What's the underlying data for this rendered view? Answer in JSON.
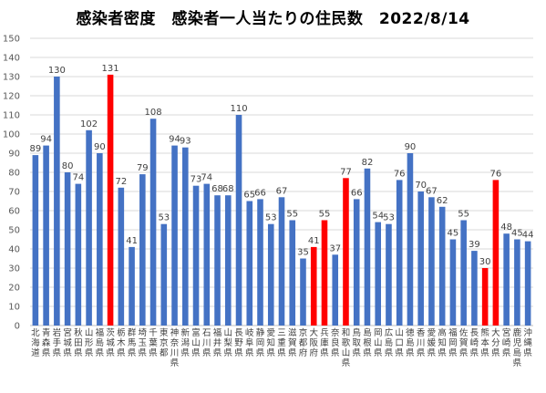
{
  "chart_data": {
    "type": "bar",
    "title": "感染者密度　感染者一人当たりの住民数　2022/8/14",
    "xlabel": "",
    "ylabel": "",
    "ylim": [
      0,
      150
    ],
    "y_ticks": [
      0,
      10,
      20,
      30,
      40,
      50,
      60,
      70,
      80,
      90,
      100,
      110,
      120,
      130,
      140,
      150
    ],
    "grid": true,
    "legend": "none",
    "colors": {
      "normal": "#4472C4",
      "highlight": "#FF0000",
      "grid": "#D9D9D9",
      "axis": "#BFBFBF"
    },
    "categories": [
      "北海道",
      "青森県",
      "岩手県",
      "宮城県",
      "秋田県",
      "山形県",
      "福島県",
      "茨城県",
      "栃木県",
      "群馬県",
      "埼玉県",
      "千葉県",
      "東京都",
      "神奈川県",
      "新潟県",
      "富山県",
      "石川県",
      "福井県",
      "山梨県",
      "長野県",
      "岐阜県",
      "静岡県",
      "愛知県",
      "三重県",
      "滋賀県",
      "京都府",
      "大阪府",
      "兵庫県",
      "奈良県",
      "和歌山県",
      "鳥取県",
      "島根県",
      "岡山県",
      "広島県",
      "山口県",
      "徳島県",
      "香川県",
      "愛媛県",
      "高知県",
      "福岡県",
      "佐賀県",
      "長崎県",
      "熊本県",
      "大分県",
      "宮崎県",
      "鹿児島県",
      "沖縄県"
    ],
    "values": [
      89,
      94,
      130,
      80,
      74,
      102,
      90,
      131,
      72,
      41,
      79,
      108,
      53,
      94,
      93,
      73,
      74,
      68,
      68,
      110,
      65,
      66,
      53,
      67,
      55,
      35,
      41,
      55,
      37,
      77,
      66,
      82,
      54,
      53,
      76,
      90,
      70,
      67,
      62,
      45,
      55,
      39,
      30,
      76,
      48,
      45,
      44
    ],
    "highlighted": [
      "茨城県",
      "大阪府",
      "兵庫県",
      "和歌山県",
      "熊本県",
      "大分県"
    ]
  }
}
